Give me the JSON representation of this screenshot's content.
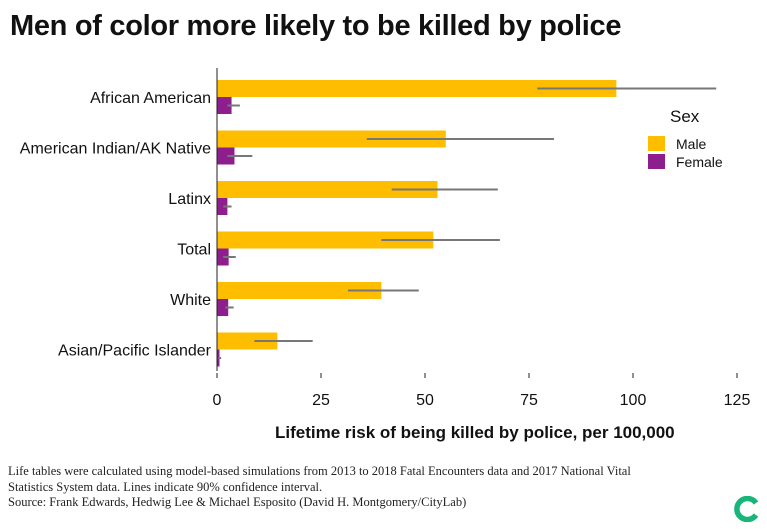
{
  "chart_data": {
    "type": "bar",
    "orientation": "horizontal",
    "title": "Men of color more likely to be killed by police",
    "xlabel": "Lifetime risk of being killed by police, per 100,000",
    "ylabel": "",
    "xlim": [
      0,
      125
    ],
    "xticks": [
      0,
      25,
      50,
      75,
      100,
      125
    ],
    "categories": [
      "African American",
      "American Indian/AK Native",
      "Latinx",
      "Total",
      "White",
      "Asian/Pacific Islander"
    ],
    "legend": {
      "title": "Sex",
      "position": "right"
    },
    "series": [
      {
        "name": "Male",
        "color": "#FFBD00",
        "values": [
          96,
          55,
          53,
          52,
          39.5,
          14.5
        ],
        "ci_low": [
          77,
          36,
          42,
          39.5,
          31.5,
          9
        ],
        "ci_high": [
          120,
          81,
          67.5,
          68,
          48.5,
          23
        ]
      },
      {
        "name": "Female",
        "color": "#8E1E8E",
        "values": [
          3.5,
          4.2,
          2.5,
          2.8,
          2.7,
          0.6
        ],
        "ci_low": [
          2.5,
          2.5,
          1.5,
          1.5,
          2.0,
          0.3
        ],
        "ci_high": [
          5.5,
          8.5,
          3.5,
          4.5,
          4.0,
          1.0
        ]
      }
    ],
    "grid": false
  },
  "footnote": {
    "line1": "Life tables were calculated using model-based simulations from 2013 to 2018 Fatal Encounters data and 2017 National Vital",
    "line2": "Statistics System data. Lines indicate 90% confidence interval.",
    "line3": "Source: Frank Edwards, Hedwig Lee & Michael Esposito (David H. Montgomery/CityLab)"
  },
  "brand": {
    "color": "#18B67A",
    "icon": "citylab-logo-icon"
  }
}
